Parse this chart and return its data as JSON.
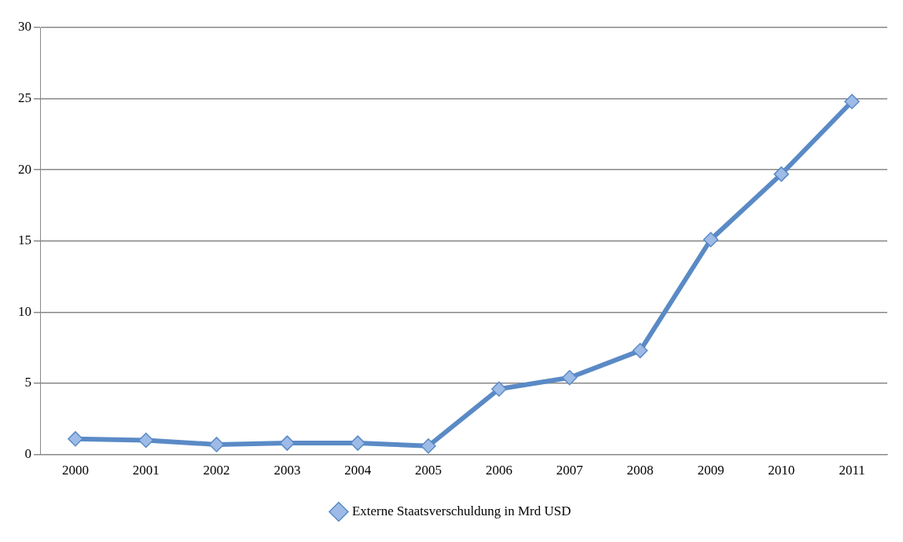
{
  "chart_data": {
    "type": "line",
    "categories": [
      "2000",
      "2001",
      "2002",
      "2003",
      "2004",
      "2005",
      "2006",
      "2007",
      "2008",
      "2009",
      "2010",
      "2011"
    ],
    "series": [
      {
        "name": "Externe Staatsverschuldung in Mrd USD",
        "color": "#5a8ac6",
        "values": [
          1.1,
          1.0,
          0.7,
          0.8,
          0.8,
          0.6,
          4.6,
          5.4,
          7.3,
          15.1,
          19.7,
          24.8
        ]
      }
    ],
    "ylim": [
      0,
      30
    ],
    "yticks": [
      0,
      5,
      10,
      15,
      20,
      25,
      30
    ],
    "grid": "y",
    "legend": "bottom",
    "marker": "diamond",
    "line_style": "solid"
  }
}
